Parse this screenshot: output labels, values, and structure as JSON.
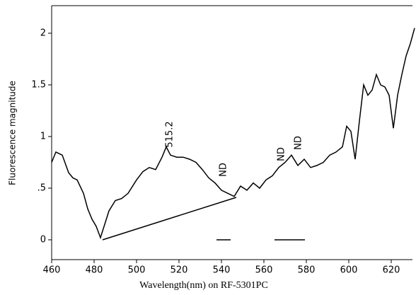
{
  "chart_data": {
    "type": "line",
    "x_label": "Wavelength(nm) on RF-5301PC",
    "y_label": "Fluorescence magnitude",
    "annotations": [
      "515.2",
      "ND",
      "ND",
      "ND"
    ],
    "x": [
      460,
      462,
      465,
      468,
      470,
      472,
      475,
      477,
      479,
      481,
      483,
      485,
      487,
      490,
      493,
      496,
      500,
      503,
      506,
      509,
      512,
      514,
      516,
      519,
      522,
      525,
      528,
      531,
      534,
      537,
      540,
      543,
      546,
      549,
      552,
      555,
      558,
      561,
      564,
      567,
      570,
      573,
      576,
      579,
      582,
      585,
      588,
      591,
      594,
      597,
      599,
      601,
      603,
      605,
      607,
      609,
      611,
      613,
      615,
      617,
      619,
      621,
      623,
      625,
      627,
      629,
      631
    ],
    "series": [
      {
        "color": "#000000",
        "values": [
          0.75,
          0.85,
          0.82,
          0.65,
          0.6,
          0.58,
          0.45,
          0.3,
          0.2,
          0.13,
          0.02,
          0.15,
          0.28,
          0.38,
          0.4,
          0.45,
          0.58,
          0.66,
          0.7,
          0.68,
          0.8,
          0.9,
          0.82,
          0.8,
          0.8,
          0.78,
          0.75,
          0.68,
          0.6,
          0.55,
          0.48,
          0.45,
          0.42,
          0.52,
          0.48,
          0.55,
          0.5,
          0.58,
          0.62,
          0.7,
          0.75,
          0.82,
          0.72,
          0.78,
          0.7,
          0.72,
          0.75,
          0.82,
          0.85,
          0.9,
          1.1,
          1.05,
          0.78,
          1.15,
          1.5,
          1.4,
          1.45,
          1.6,
          1.5,
          1.48,
          1.4,
          1.08,
          1.4,
          1.6,
          1.78,
          1.9,
          2.05
        ]
      }
    ],
    "xlim": [
      460,
      630
    ],
    "xticks": [
      460,
      480,
      500,
      520,
      540,
      560,
      580,
      600,
      620
    ],
    "ylim": [
      -0.192,
      2.267
    ],
    "yticks": [
      0,
      {
        "value": 0.5,
        "label": ".5"
      },
      1,
      1.5,
      2
    ],
    "grid": false
  }
}
